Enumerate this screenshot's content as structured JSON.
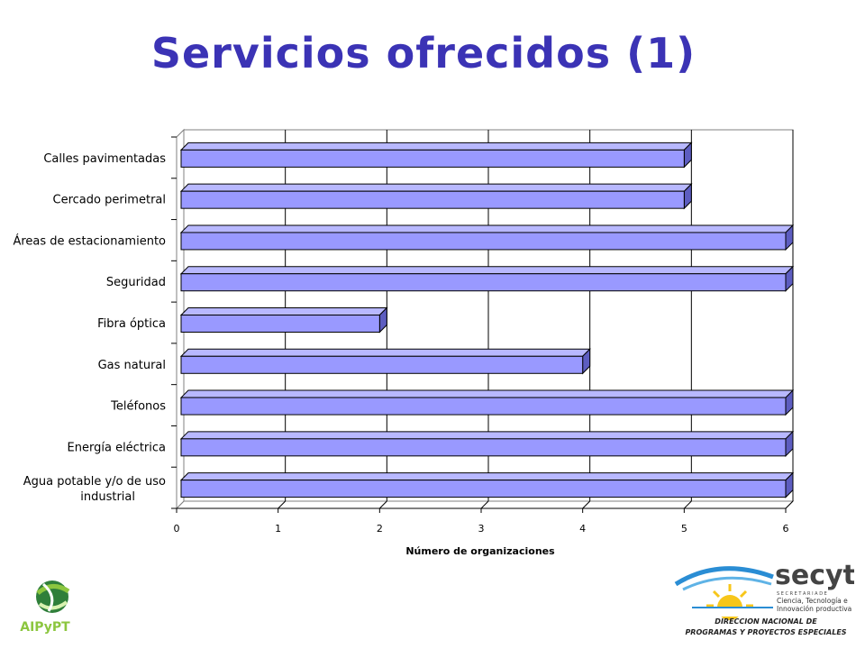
{
  "title": "Servicios ofrecidos (1)",
  "chart_data": {
    "type": "bar",
    "orientation": "horizontal",
    "categories": [
      "Calles pavimentadas",
      "Cercado perimetral",
      "Áreas de estacionamiento",
      "Seguridad",
      "Fibra óptica",
      "Gas natural",
      "Teléfonos",
      "Energía eléctrica",
      "Agua potable y/o de uso industrial"
    ],
    "values": [
      5,
      5,
      6,
      6,
      2,
      4,
      6,
      6,
      6
    ],
    "xlim": [
      0,
      6
    ],
    "xticks": [
      "0",
      "1",
      "2",
      "3",
      "4",
      "5",
      "6"
    ],
    "xlabel": "Número de organizaciones",
    "ylabel": "",
    "grid": true,
    "bar_color": "#9999ff",
    "bar_top_color": "#b8b8ff",
    "bar_side_color": "#5d5dc0"
  },
  "logos": {
    "left": {
      "text": "AIPyPT",
      "color": "#8cc63f",
      "icon": "globe-logo-icon"
    },
    "right": {
      "name": "secyt",
      "subtitle_lines": [
        "S E C R E T A R I A   D E",
        "Ciencia, Tecnología e",
        "Innovación productiva"
      ],
      "footer_lines": [
        "DIRECCION NACIONAL DE",
        "PROGRAMAS Y PROYECTOS ESPECIALES"
      ],
      "icon": "sun-logo-icon"
    }
  }
}
